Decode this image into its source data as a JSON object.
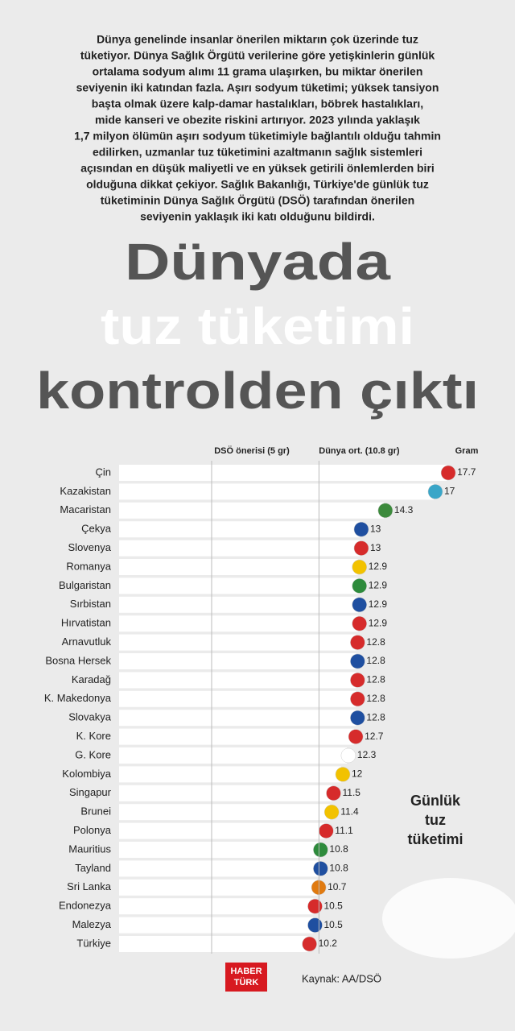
{
  "intro": [
    "Dünya genelinde insanlar önerilen miktarın çok üzerinde tuz",
    "tüketiyor. Dünya Sağlık Örgütü verilerine göre yetişkinlerin günlük",
    "ortalama sodyum alımı 11 grama ulaşırken, bu miktar önerilen",
    "seviyenin iki katından fazla. Aşırı sodyum tüketimi; yüksek tansiyon",
    "başta olmak üzere kalp-damar hastalıkları, böbrek hastalıkları,",
    "mide kanseri ve obezite riskini artırıyor. 2023 yılında yaklaşık",
    "1,7 milyon ölümün aşırı sodyum tüketimiyle bağlantılı olduğu tahmin",
    "edilirken, uzmanlar tuz tüketimini azaltmanın sağlık sistemleri",
    "açısından en düşük maliyetli ve en yüksek getirili önlemlerden biri",
    "olduğuna dikkat çekiyor. Sağlık Bakanlığı, Türkiye'de günlük tuz",
    "tüketiminin Dünya Sağlık Örgütü (DSÖ) tarafından önerilen",
    "seviyenin yaklaşık iki katı olduğunu bildirdi."
  ],
  "chart_data": {
    "type": "hbar",
    "title": [
      "Dünyada",
      "tuz tüketimi",
      "kontrolden çıktı"
    ],
    "unit_label": "Gram",
    "categories": [
      "Çin",
      "Kazakistan",
      "Macaristan",
      "Çekya",
      "Slovenya",
      "Romanya",
      "Bulgaristan",
      "Sırbistan",
      "Hırvatistan",
      "Arnavutluk",
      "Bosna Hersek",
      "Karadağ",
      "K. Makedonya",
      "Slovakya",
      "K. Kore",
      "G. Kore",
      "Kolombiya",
      "Singapur",
      "Brunei",
      "Polonya",
      "Mauritius",
      "Tayland",
      "Sri Lanka",
      "Endonezya",
      "Malezya",
      "Türkiye"
    ],
    "values": [
      17.7,
      17,
      14.3,
      13,
      13,
      12.9,
      12.9,
      12.9,
      12.9,
      12.8,
      12.8,
      12.8,
      12.8,
      12.8,
      12.7,
      12.3,
      12,
      11.5,
      11.4,
      11.1,
      10.8,
      10.8,
      10.7,
      10.5,
      10.5,
      10.2
    ],
    "color": "#ffffff",
    "xlim": [
      0,
      18
    ],
    "reference_lines": [
      {
        "label": "DSÖ önerisi (5 gr)",
        "value": 5
      },
      {
        "label": "Dünya ort. (10.8 gr)",
        "value": 10.8
      }
    ],
    "annotation": [
      "Günlük",
      "tuz",
      "tüketimi"
    ]
  },
  "footer": {
    "logo": [
      "HABER",
      "TÜRK"
    ],
    "source": "Kaynak: AA/DSÖ"
  }
}
